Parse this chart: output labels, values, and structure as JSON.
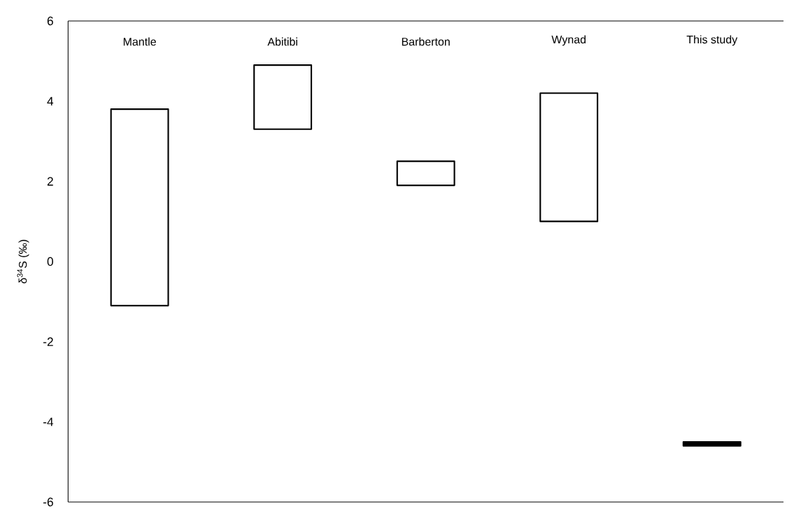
{
  "chart_data": {
    "type": "bar",
    "ylabel": "δ$^{34}$S (‰)",
    "categories": [
      "Mantle",
      "Abitibi",
      "Barberton",
      "Wynad",
      "This study"
    ],
    "base": [
      -1.1,
      3.3,
      1.9,
      1.0,
      -4.6
    ],
    "values": [
      4.9,
      1.6,
      0.6,
      3.2,
      0.1
    ],
    "colors": [
      "#ffffff",
      "#ffffff",
      "#ffffff",
      "#ffffff",
      "#000000"
    ],
    "ylim": [
      -6,
      6
    ],
    "yticks": [
      -6,
      -4,
      -2,
      0,
      2,
      4,
      6
    ],
    "grid": false
  }
}
